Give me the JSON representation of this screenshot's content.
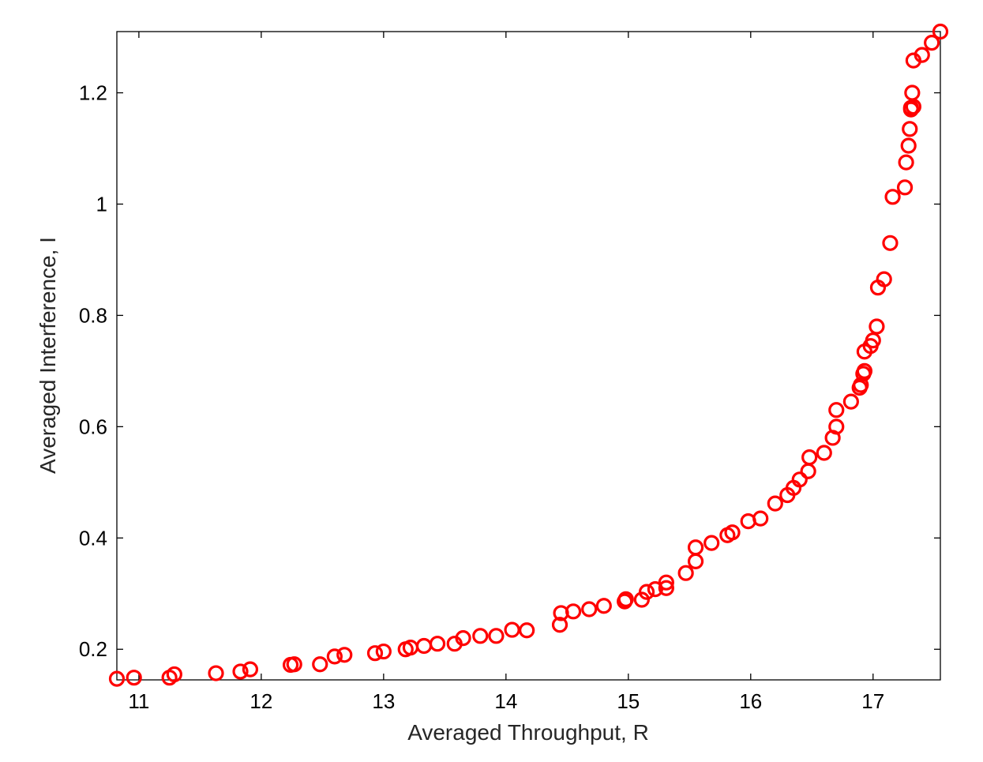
{
  "chart_data": {
    "type": "scatter",
    "xlabel": "Averaged Throughput, R",
    "ylabel": "Averaged Interference, I",
    "xlim": [
      10.82,
      17.55
    ],
    "ylim": [
      0.145,
      1.31
    ],
    "xticks": [
      11,
      12,
      13,
      14,
      15,
      16,
      17
    ],
    "yticks": [
      0.2,
      0.4,
      0.6,
      0.8,
      1,
      1.2
    ],
    "xtick_labels": [
      "11",
      "12",
      "13",
      "14",
      "15",
      "16",
      "17"
    ],
    "ytick_labels": [
      "0.2",
      "0.4",
      "0.6",
      "0.8",
      "1",
      "1.2"
    ],
    "grid": false,
    "marker": "circle-open",
    "color": "#ff0000",
    "series": [
      {
        "x": [
          10.82,
          10.96,
          11.25,
          11.29,
          11.63,
          11.83,
          11.91,
          12.24,
          12.27,
          12.48,
          12.6,
          12.68,
          12.93,
          13.0,
          13.18,
          13.22,
          13.33,
          13.44,
          13.58,
          13.65,
          13.79,
          13.92,
          14.05,
          14.17,
          14.44,
          14.45,
          14.55,
          14.68,
          14.8,
          14.97,
          14.98,
          15.11,
          15.15,
          15.22,
          15.31,
          15.31,
          15.47,
          15.55,
          15.55,
          15.68,
          15.81,
          15.85,
          15.98,
          16.08,
          16.2,
          16.3,
          16.35,
          16.4,
          16.47,
          16.48,
          16.6,
          16.67,
          16.7,
          16.7,
          16.82,
          16.89,
          16.9,
          16.92,
          16.93,
          16.93,
          16.98,
          17.0,
          17.03,
          17.04,
          17.09,
          17.14,
          17.16,
          17.26,
          17.27,
          17.29,
          17.3,
          17.31,
          17.31,
          17.32,
          17.33,
          17.33,
          17.4,
          17.48,
          17.55
        ],
        "y": [
          0.147,
          0.149,
          0.149,
          0.155,
          0.157,
          0.16,
          0.164,
          0.172,
          0.173,
          0.173,
          0.187,
          0.19,
          0.193,
          0.196,
          0.2,
          0.203,
          0.206,
          0.21,
          0.21,
          0.22,
          0.224,
          0.224,
          0.235,
          0.234,
          0.244,
          0.265,
          0.268,
          0.272,
          0.278,
          0.286,
          0.29,
          0.289,
          0.303,
          0.308,
          0.31,
          0.32,
          0.337,
          0.358,
          0.383,
          0.391,
          0.405,
          0.41,
          0.43,
          0.435,
          0.462,
          0.477,
          0.49,
          0.505,
          0.52,
          0.545,
          0.553,
          0.58,
          0.6,
          0.63,
          0.645,
          0.67,
          0.675,
          0.695,
          0.7,
          0.735,
          0.745,
          0.755,
          0.78,
          0.85,
          0.865,
          0.93,
          1.013,
          1.03,
          1.075,
          1.105,
          1.135,
          1.17,
          1.173,
          1.2,
          1.175,
          1.258,
          1.268,
          1.29,
          1.31
        ]
      }
    ]
  }
}
